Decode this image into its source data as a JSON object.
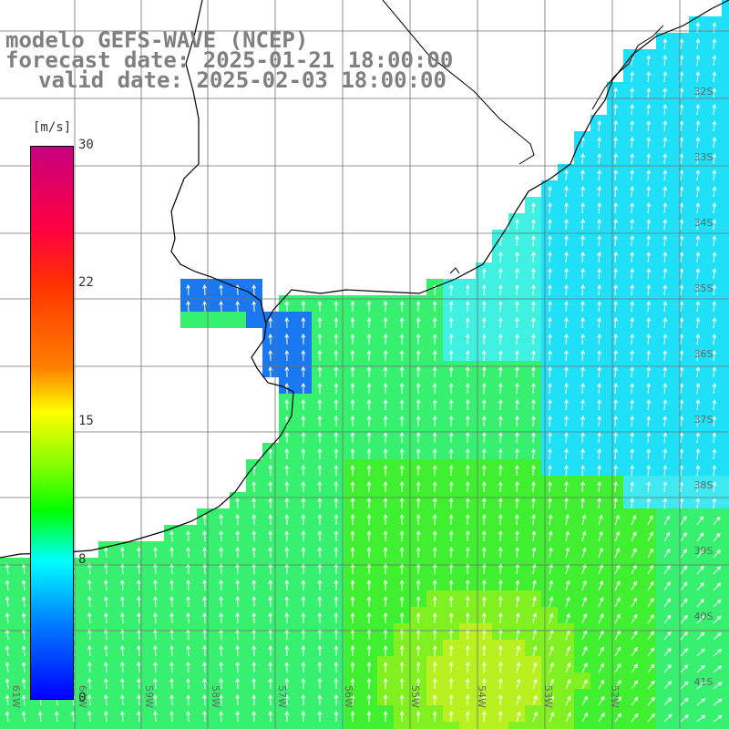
{
  "title": {
    "model": "modelo GEFS-WAVE (NCEP)",
    "forecast": "forecast date: 2025-01-21 18:00:00",
    "valid": "valid date: 2025-02-03 18:00:00"
  },
  "colorbar": {
    "unit": "[m/s]",
    "ticks": [
      "30",
      "22",
      "15",
      "8",
      "0"
    ],
    "colors": [
      "#c6007e",
      "#ff0000",
      "#ff8000",
      "#ffff00",
      "#00ff00",
      "#00ffff",
      "#0000ff"
    ]
  },
  "latitude_labels": [
    "32S",
    "33S",
    "34S",
    "35S",
    "36S",
    "37S",
    "38S",
    "39S",
    "40S",
    "41S"
  ],
  "longitude_labels": [
    "61W",
    "60W",
    "59W",
    "58W",
    "57W",
    "56W",
    "55W",
    "54W",
    "53W",
    "52W"
  ],
  "field": {
    "variable": "wind speed",
    "unit": "m/s",
    "typical_range": [
      5,
      15
    ],
    "direction": "arrows mostly from south toward north, veering east in southeast sector"
  },
  "colors": {
    "land": "#ffffff",
    "coast": "#000000",
    "grid": "#808080",
    "title": "#7f7f7f"
  }
}
